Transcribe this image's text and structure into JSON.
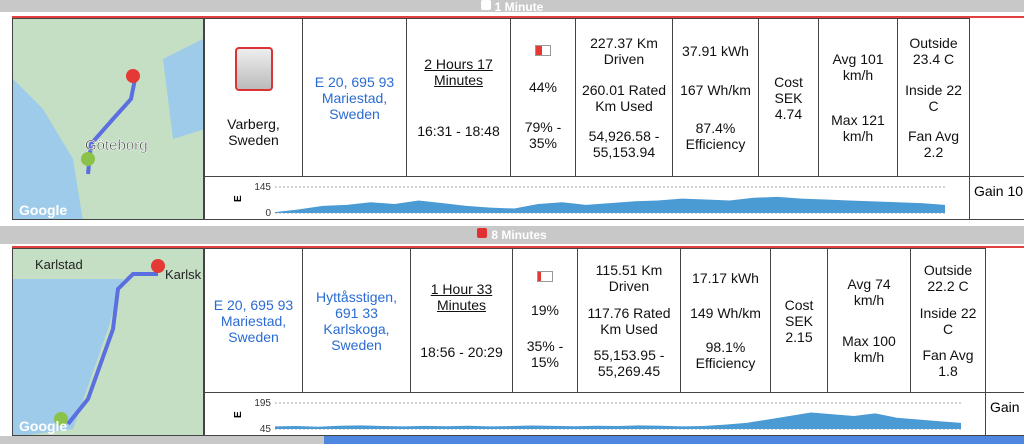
{
  "trips": [
    {
      "gap": "1 Minute",
      "map": {
        "labels": [
          "Göteborg"
        ],
        "attribution": "Google"
      },
      "cells": [
        [
          "Varberg, Sweden"
        ],
        [
          "E 20, 695 93 Mariestad, Sweden"
        ],
        [
          "2 Hours 17 Minutes",
          "16:31 - 18:48"
        ],
        [
          "44%",
          "79% - 35%"
        ],
        [
          "227.37 Km Driven",
          "260.01 Rated Km Used",
          "54,926.58 - 55,153.94"
        ],
        [
          "37.91 kWh",
          "167 Wh/km",
          "87.4% Efficiency"
        ],
        [
          "Cost SEK 4.74"
        ],
        [
          "Avg 101 km/h",
          "Max 121 km/h"
        ],
        [
          "Outside 23.4 C",
          "Inside 22 C",
          "Fan Avg 2.2"
        ]
      ],
      "gain": "Gain 10",
      "battery": 44,
      "elevation": {
        "axis": "E",
        "yticks": [
          0,
          145
        ],
        "ylim": [
          0,
          145
        ],
        "values": [
          5,
          20,
          40,
          45,
          60,
          50,
          70,
          55,
          40,
          30,
          25,
          50,
          60,
          45,
          55,
          65,
          70,
          80,
          75,
          70,
          85,
          90,
          80,
          75,
          70,
          65,
          60,
          55,
          45
        ]
      }
    },
    {
      "gap": "8 Minutes",
      "map": {
        "labels": [
          "Karlstad",
          "Karlsk"
        ],
        "attribution": "Google"
      },
      "cells": [
        [
          "E 20, 695 93 Mariestad, Sweden"
        ],
        [
          "Hyttåsstigen, 691 33 Karlskoga, Sweden"
        ],
        [
          "1 Hour 33 Minutes",
          "18:56 - 20:29"
        ],
        [
          "19%",
          "35% - 15%"
        ],
        [
          "115.51 Km Driven",
          "117.76 Rated Km Used",
          "55,153.95 - 55,269.45"
        ],
        [
          "17.17 kWh",
          "149 Wh/km",
          "98.1% Efficiency"
        ],
        [
          "Cost SEK 2.15"
        ],
        [
          "Avg 74 km/h",
          "Max 100 km/h"
        ],
        [
          "Outside 22.2 C",
          "Inside 22 C",
          "Fan Avg 1.8"
        ]
      ],
      "gain": "Gain",
      "battery": 19,
      "elevation": {
        "axis": "E",
        "yticks": [
          45,
          195
        ],
        "ylim": [
          45,
          195
        ],
        "values": [
          60,
          62,
          58,
          64,
          66,
          62,
          60,
          63,
          61,
          64,
          60,
          62,
          65,
          63,
          61,
          64,
          62,
          66,
          64,
          60,
          62,
          70,
          80,
          100,
          120,
          140,
          130,
          120,
          135,
          110,
          100,
          90,
          80
        ]
      }
    }
  ]
}
